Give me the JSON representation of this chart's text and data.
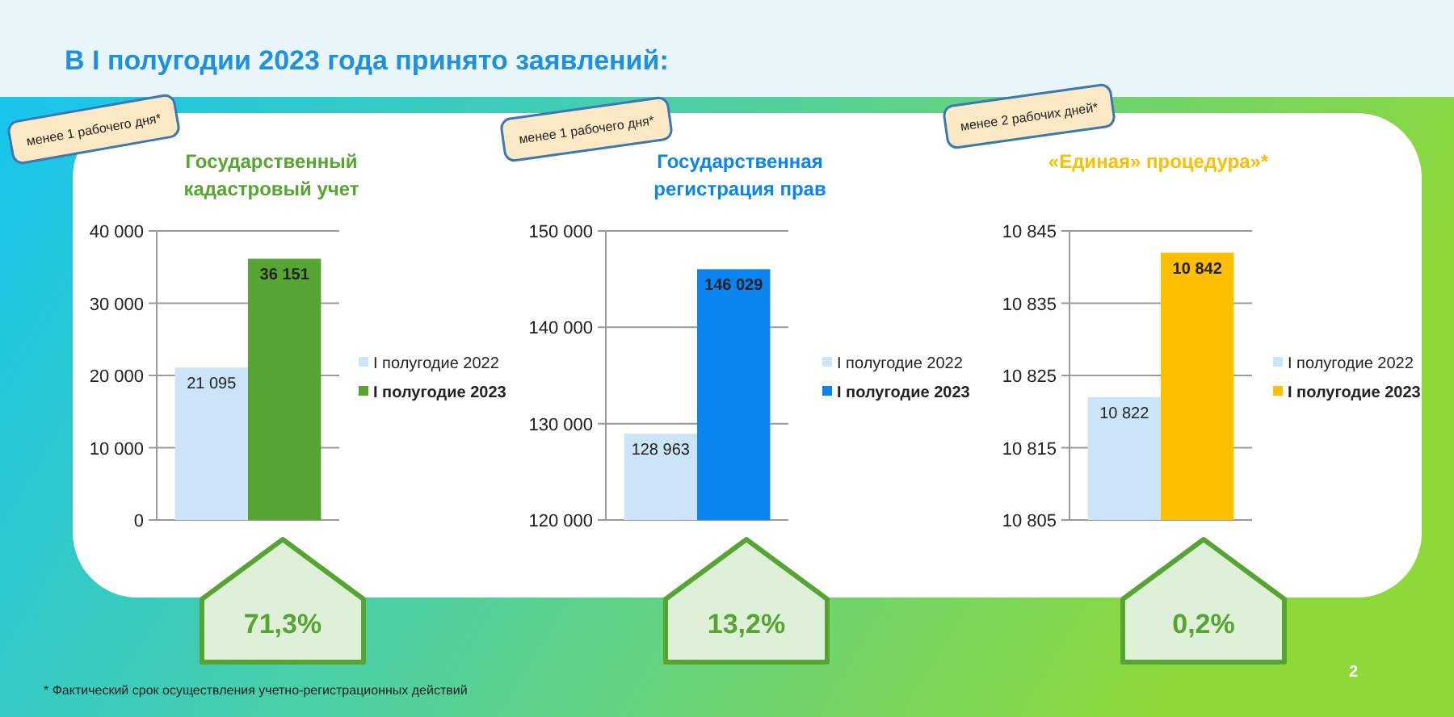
{
  "chart_data": [
    {
      "type": "bar",
      "title": "Государственный кадастровый учет",
      "categories": [
        null
      ],
      "series": [
        {
          "name": "I полугодие 2022",
          "color": "#cce4f8",
          "values": [
            21095
          ]
        },
        {
          "name": "I полугодие 2023",
          "color": "#56a532",
          "values": [
            36151
          ]
        }
      ],
      "ylim": [
        0,
        40000
      ],
      "yticks": [
        {
          "value": 0,
          "label": "0"
        },
        {
          "value": 10000,
          "label": "10 000"
        },
        {
          "value": 20000,
          "label": "20 000"
        },
        {
          "value": 30000,
          "label": "30 000"
        },
        {
          "value": 40000,
          "label": "40 000"
        }
      ],
      "value_labels": [
        "21 095",
        "36 151"
      ],
      "grid": "y",
      "legend": "right",
      "annotations": [
        "В I полугодии 2023 года принято заявлений:",
        "менее 1 рабочего дня*",
        "71,3%",
        "* Фактический срок осуществления учетно-регистрационных действий"
      ]
    },
    {
      "type": "bar",
      "title": "Государственная регистрация прав",
      "categories": [
        null
      ],
      "series": [
        {
          "name": "I полугодие 2022",
          "color": "#cce4f8",
          "values": [
            128963
          ]
        },
        {
          "name": "I полугодие 2023",
          "color": "#0a84f0",
          "values": [
            146029
          ]
        }
      ],
      "ylim": [
        120000,
        150000
      ],
      "yticks": [
        {
          "value": 120000,
          "label": "120 000"
        },
        {
          "value": 130000,
          "label": "130 000"
        },
        {
          "value": 140000,
          "label": "140 000"
        },
        {
          "value": 150000,
          "label": "150 000"
        }
      ],
      "value_labels": [
        "128 963",
        "146 029"
      ],
      "grid": "y",
      "legend": "right",
      "annotations": [
        "менее 1 рабочего дня*",
        "13,2%"
      ]
    },
    {
      "type": "bar",
      "title": "«Единая» процедура»*",
      "categories": [
        null
      ],
      "series": [
        {
          "name": "I полугодие 2022",
          "color": "#cce4f8",
          "values": [
            10822
          ]
        },
        {
          "name": "I полугодие 2023",
          "color": "#fdbf00",
          "values": [
            10842
          ]
        }
      ],
      "ylim": [
        10805,
        10845
      ],
      "yticks": [
        {
          "value": 10805,
          "label": "10 805"
        },
        {
          "value": 10815,
          "label": "10 815"
        },
        {
          "value": 10825,
          "label": "10 825"
        },
        {
          "value": 10835,
          "label": "10 835"
        },
        {
          "value": 10845,
          "label": "10 845"
        }
      ],
      "value_labels": [
        "10 822",
        "10 842"
      ],
      "grid": "y",
      "legend": "right",
      "annotations": [
        "менее 2 рабочих дней*",
        "0,2%",
        "2"
      ]
    }
  ]
}
